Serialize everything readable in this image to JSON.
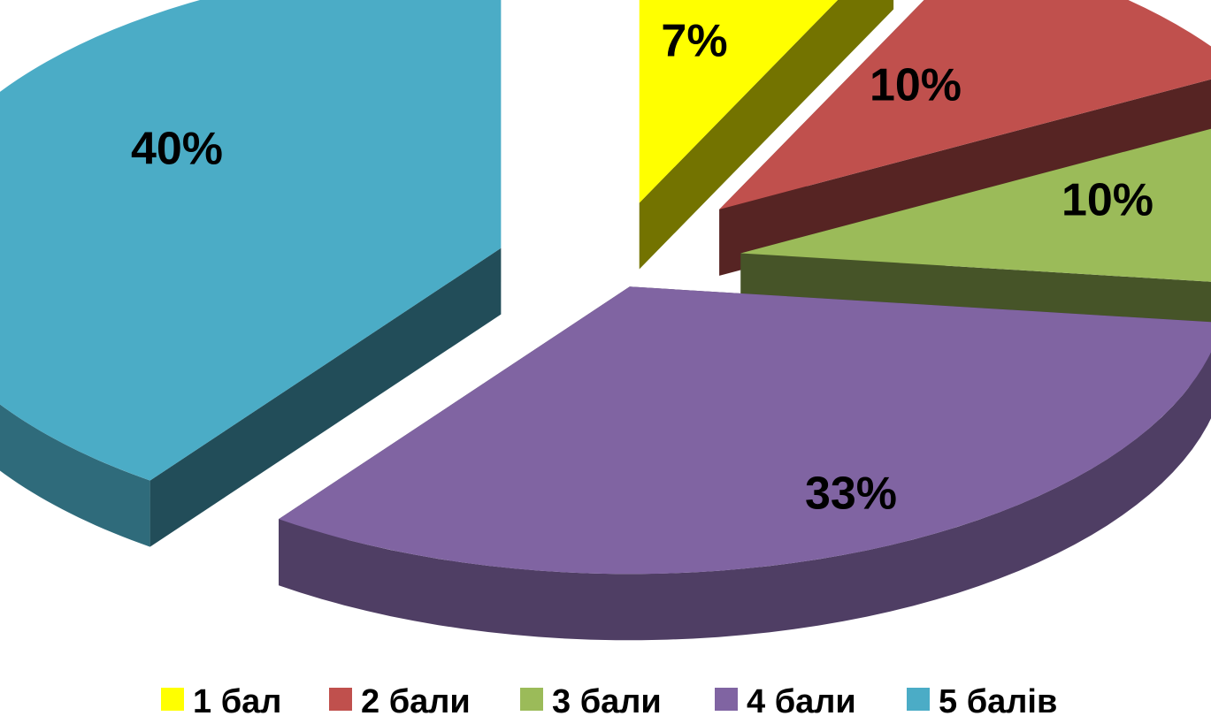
{
  "chart_data": {
    "type": "pie",
    "style": "3d-exploded",
    "categories": [
      "1 бал",
      "2 бали",
      "3 бали",
      "4 бали",
      "5 балів"
    ],
    "values": [
      7,
      10,
      10,
      33,
      40
    ],
    "data_labels": [
      "7%",
      "10%",
      "10%",
      "33%",
      "40%"
    ],
    "colors": [
      "#FFFF00",
      "#C0504D",
      "#9BBB59",
      "#8064A2",
      "#4BACC6"
    ],
    "legend": {
      "position": "bottom",
      "entries": [
        "1 бал",
        "2 бали",
        "3 бали",
        "4 бали",
        "5 балів"
      ]
    }
  }
}
